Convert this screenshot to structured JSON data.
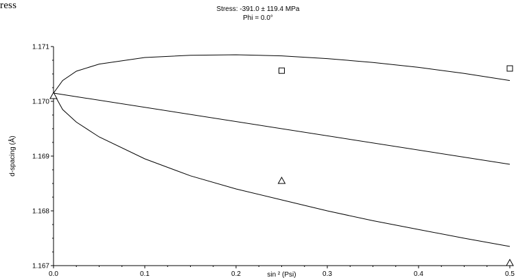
{
  "header_fragment": "ress",
  "chart_data": {
    "type": "scatter",
    "title": "Stress: -391.0 ± 119.4  MPa",
    "subtitle": "Phi = 0.0°",
    "xlabel": "sin ² (Psi)",
    "ylabel": "d-spacing (Å)",
    "xlim": [
      0.0,
      0.5
    ],
    "ylim": [
      1.167,
      1.171
    ],
    "x_ticks": [
      "0.0",
      "0.1",
      "0.2",
      "0.3",
      "0.4",
      "0.5"
    ],
    "y_ticks": [
      "1.167",
      "1.168",
      "1.169",
      "1.170",
      "1.171"
    ],
    "grid": false,
    "lines": [
      {
        "role": "upper-bound",
        "x": [
          0.0,
          0.01,
          0.025,
          0.05,
          0.1,
          0.15,
          0.2,
          0.25,
          0.3,
          0.35,
          0.4,
          0.45,
          0.5
        ],
        "y": [
          1.17015,
          1.17038,
          1.17055,
          1.17068,
          1.1708,
          1.17084,
          1.17085,
          1.17083,
          1.17078,
          1.17071,
          1.17062,
          1.17051,
          1.17038
        ]
      },
      {
        "role": "fit",
        "x": [
          0.0,
          0.5
        ],
        "y": [
          1.17015,
          1.16885
        ]
      },
      {
        "role": "lower-bound",
        "x": [
          0.0,
          0.01,
          0.025,
          0.05,
          0.1,
          0.15,
          0.2,
          0.25,
          0.3,
          0.35,
          0.4,
          0.45,
          0.5
        ],
        "y": [
          1.17015,
          1.16985,
          1.16962,
          1.16935,
          1.16895,
          1.16864,
          1.1684,
          1.1682,
          1.168,
          1.16782,
          1.16766,
          1.1675,
          1.16735
        ]
      }
    ],
    "series": [
      {
        "marker": "square",
        "x": [
          0.25,
          0.5
        ],
        "y": [
          1.17056,
          1.1706
        ]
      },
      {
        "marker": "triangle",
        "x": [
          0.0,
          0.25,
          0.5
        ],
        "y": [
          1.1701,
          1.16855,
          1.16705
        ]
      }
    ]
  }
}
